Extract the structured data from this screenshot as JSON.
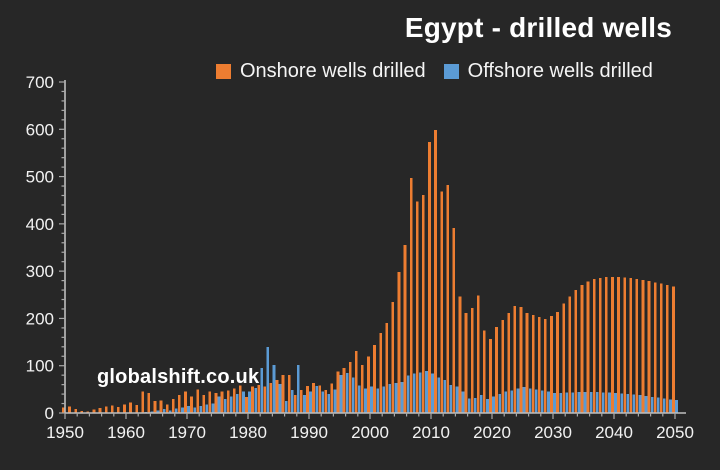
{
  "title": "Egypt - drilled wells",
  "watermark": "globalshift.co.uk",
  "colors": {
    "background": "#272727",
    "onshore": "#ED7D31",
    "offshore": "#5B9BD5",
    "axis": "#BFBFBF",
    "tick": "#A8A8A8",
    "label_text": "#F2F2F2",
    "title_text": "#FFFFFF"
  },
  "legend": {
    "items": [
      {
        "label": "Onshore wells drilled",
        "color": "#ED7D31"
      },
      {
        "label": "Offshore wells drilled",
        "color": "#5B9BD5"
      }
    ]
  },
  "chart_data": {
    "type": "bar",
    "title": "Egypt - drilled wells",
    "xlabel": "",
    "ylabel": "",
    "x_start": 1950,
    "x_end": 2050,
    "ylim": [
      0,
      700
    ],
    "y_major_tick": 100,
    "y_minor_tick": 20,
    "x_major_tick": 10,
    "x_minor_tick": 2,
    "x_tick_labels": [
      1950,
      1960,
      1970,
      1980,
      1990,
      2000,
      2010,
      2020,
      2030,
      2040,
      2050
    ],
    "y_tick_labels": [
      0,
      100,
      200,
      300,
      400,
      500,
      600,
      700
    ],
    "grid": false,
    "legend_position": "top",
    "series": [
      {
        "name": "Onshore wells drilled",
        "color": "#ED7D31",
        "values": [
          12,
          14,
          8,
          4,
          3,
          7,
          11,
          14,
          16,
          13,
          18,
          22,
          17,
          45,
          42,
          25,
          26,
          18,
          30,
          38,
          45,
          35,
          50,
          38,
          45,
          42,
          45,
          48,
          52,
          58,
          34,
          56,
          59,
          56,
          63,
          70,
          80,
          80,
          38,
          49,
          57,
          63,
          58,
          49,
          62,
          88,
          95,
          108,
          131,
          101,
          120,
          144,
          169,
          190,
          235,
          298,
          355,
          497,
          447,
          461,
          573,
          598,
          468,
          482,
          391,
          246,
          212,
          222,
          249,
          175,
          156,
          182,
          197,
          212,
          226,
          224,
          212,
          207,
          203,
          199,
          205,
          214,
          232,
          246,
          260,
          271,
          278,
          283,
          286,
          288,
          288,
          288,
          287,
          285,
          283,
          281,
          279,
          276,
          274,
          271,
          268
        ]
      },
      {
        "name": "Offshore wells drilled",
        "color": "#5B9BD5",
        "values": [
          0,
          0,
          0,
          0,
          0,
          0,
          0,
          0,
          0,
          0,
          0,
          0,
          0,
          2,
          3,
          5,
          8,
          5,
          10,
          12,
          15,
          12,
          15,
          18,
          20,
          35,
          30,
          35,
          40,
          45,
          45,
          53,
          95,
          140,
          101,
          61,
          25,
          49,
          101,
          38,
          45,
          57,
          45,
          40,
          50,
          80,
          85,
          75,
          58,
          52,
          56,
          52,
          56,
          61,
          63,
          66,
          79,
          84,
          86,
          89,
          84,
          75,
          70,
          59,
          56,
          45,
          31,
          32,
          38,
          30,
          35,
          40,
          45,
          48,
          52,
          55,
          52,
          50,
          48,
          45,
          42,
          42,
          43,
          43,
          44,
          44,
          44,
          44,
          43,
          43,
          42,
          41,
          40,
          39,
          38,
          36,
          34,
          33,
          31,
          29,
          27
        ]
      }
    ]
  }
}
